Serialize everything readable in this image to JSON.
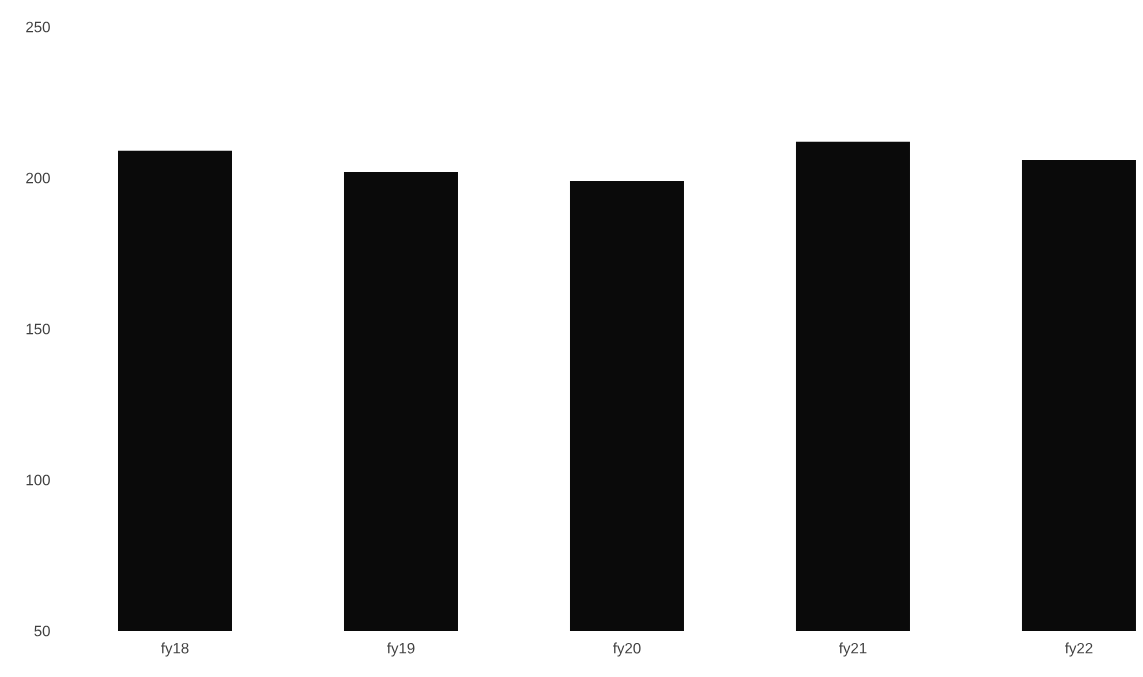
{
  "chart_data": {
    "type": "bar",
    "categories": [
      "fy18",
      "fy19",
      "fy20",
      "fy21",
      "fy22"
    ],
    "values": [
      209,
      202,
      199,
      212,
      206
    ],
    "color": "#0a0a0a",
    "ylim": [
      50,
      250
    ],
    "yticks": [
      50,
      100,
      150,
      200,
      250
    ]
  }
}
